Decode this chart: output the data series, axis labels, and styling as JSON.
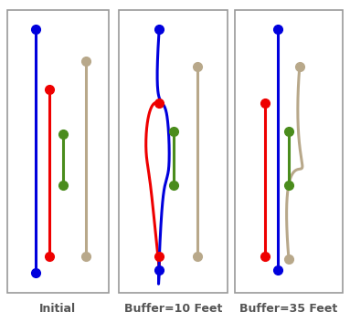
{
  "panel_labels": [
    "Initial",
    "Buffer=10 Feet",
    "Buffer=35 Feet"
  ],
  "panel_label_fontsize": 9,
  "panel_label_color": "#555555",
  "fig_bg": "#ffffff",
  "line_width": 2.2,
  "marker_size": 7,
  "colors": {
    "blue": "#0000dd",
    "red": "#ee0000",
    "green": "#4a8c1c",
    "tan": "#b8a88a"
  }
}
